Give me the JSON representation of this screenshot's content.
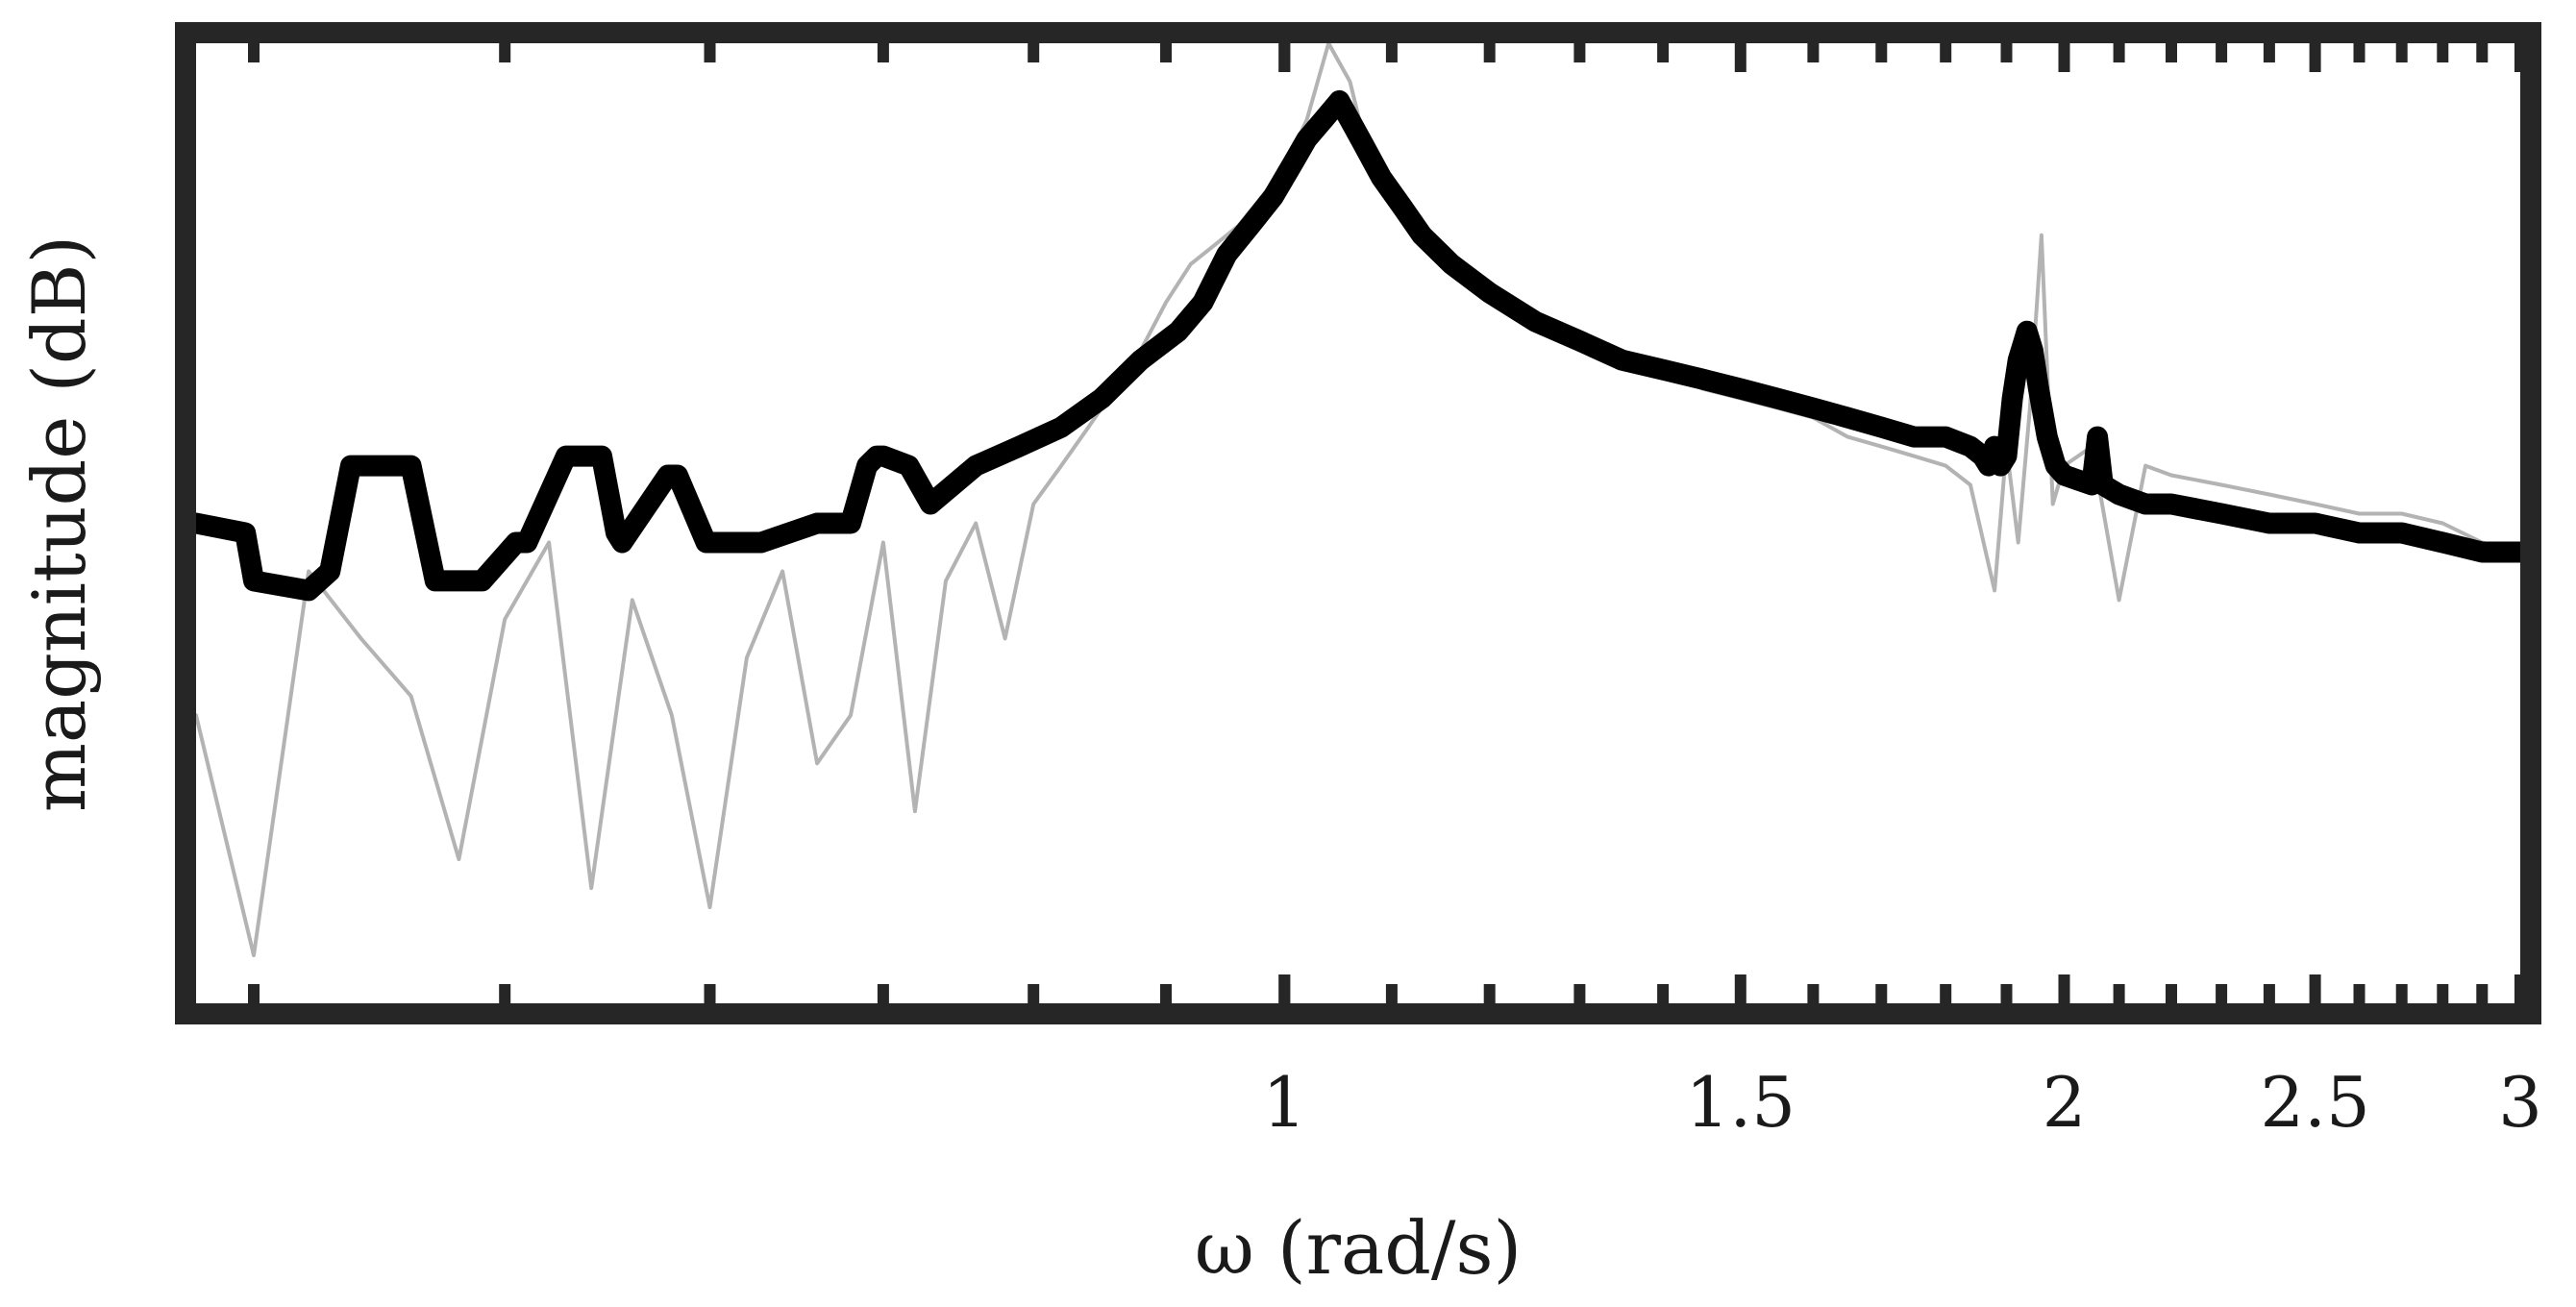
{
  "chart_data": {
    "type": "line",
    "xlabel": "ω (rad/s)",
    "ylabel": "magnitude (dB)",
    "x_scale": "log",
    "xlim": [
      0.38,
      3
    ],
    "ylim": [
      0,
      100
    ],
    "grid": false,
    "y_tick_labels_shown": false,
    "x_ticks": [
      {
        "value": 1,
        "label": "1"
      },
      {
        "value": 1.5,
        "label": "1.5"
      },
      {
        "value": 2,
        "label": "2"
      },
      {
        "value": 2.5,
        "label": "2.5"
      },
      {
        "value": 3,
        "label": "3"
      }
    ],
    "series": [
      {
        "role": "raw-noisy",
        "color": "#b3b3b3",
        "x": [
          0.38,
          0.4,
          0.42,
          0.44,
          0.46,
          0.48,
          0.5,
          0.52,
          0.54,
          0.56,
          0.58,
          0.6,
          0.62,
          0.64,
          0.66,
          0.68,
          0.7,
          0.72,
          0.74,
          0.76,
          0.78,
          0.8,
          0.82,
          0.84,
          0.86,
          0.88,
          0.9,
          0.92,
          0.94,
          0.96,
          0.98,
          1.0,
          1.02,
          1.04,
          1.06,
          1.08,
          1.1,
          1.13,
          1.16,
          1.2,
          1.25,
          1.3,
          1.35,
          1.4,
          1.45,
          1.5,
          1.55,
          1.6,
          1.65,
          1.7,
          1.75,
          1.8,
          1.84,
          1.88,
          1.9,
          1.92,
          1.94,
          1.96,
          1.98,
          2.0,
          2.05,
          2.1,
          2.15,
          2.2,
          2.3,
          2.4,
          2.5,
          2.6,
          2.7,
          2.8,
          2.9,
          3.0
        ],
        "values": [
          30,
          5,
          45,
          38,
          32,
          15,
          40,
          48,
          12,
          42,
          30,
          10,
          36,
          45,
          25,
          30,
          48,
          20,
          44,
          50,
          38,
          52,
          56,
          60,
          64,
          68,
          73,
          77,
          79,
          81,
          84,
          87,
          92,
          100,
          96,
          87,
          83,
          80,
          77,
          74,
          71,
          69,
          67,
          66,
          64,
          63,
          62,
          61,
          59,
          58,
          57,
          56,
          54,
          43,
          58,
          48,
          62,
          80,
          52,
          56,
          58,
          42,
          56,
          55,
          54,
          53,
          52,
          51,
          51,
          50,
          48,
          47
        ]
      },
      {
        "role": "smoothed",
        "color": "#000000",
        "x": [
          0.38,
          0.397,
          0.4,
          0.42,
          0.428,
          0.436,
          0.46,
          0.47,
          0.49,
          0.505,
          0.51,
          0.528,
          0.545,
          0.552,
          0.555,
          0.578,
          0.583,
          0.598,
          0.628,
          0.66,
          0.68,
          0.69,
          0.696,
          0.7,
          0.716,
          0.73,
          0.76,
          0.79,
          0.82,
          0.85,
          0.88,
          0.91,
          0.93,
          0.95,
          0.97,
          0.99,
          1.0,
          1.01,
          1.02,
          1.035,
          1.05,
          1.07,
          1.09,
          1.11,
          1.13,
          1.16,
          1.2,
          1.25,
          1.3,
          1.35,
          1.4,
          1.45,
          1.5,
          1.55,
          1.6,
          1.65,
          1.7,
          1.75,
          1.8,
          1.84,
          1.86,
          1.87,
          1.88,
          1.89,
          1.9,
          1.91,
          1.92,
          1.93,
          1.935,
          1.945,
          1.955,
          1.97,
          1.985,
          2.0,
          2.05,
          2.06,
          2.07,
          2.1,
          2.15,
          2.2,
          2.3,
          2.4,
          2.5,
          2.6,
          2.7,
          2.8,
          2.9,
          3.0
        ],
        "values": [
          50,
          49,
          44,
          43,
          45,
          56,
          56,
          44,
          44,
          48,
          48,
          57,
          57,
          49,
          48,
          55,
          55,
          48,
          48,
          50,
          50,
          56,
          57,
          57,
          56,
          52,
          56,
          58,
          60,
          63,
          67,
          70,
          73,
          78,
          81,
          84,
          86,
          88,
          90,
          92,
          94,
          90,
          86,
          83,
          80,
          77,
          74,
          71,
          69,
          67,
          66,
          65,
          64,
          63,
          62,
          61,
          60,
          59,
          59,
          58,
          57,
          56,
          58,
          56,
          57,
          63,
          67,
          69,
          70,
          68,
          64,
          59,
          56,
          55,
          54,
          59,
          54,
          53,
          52,
          52,
          51,
          50,
          50,
          49,
          49,
          48,
          47,
          47
        ]
      }
    ]
  }
}
